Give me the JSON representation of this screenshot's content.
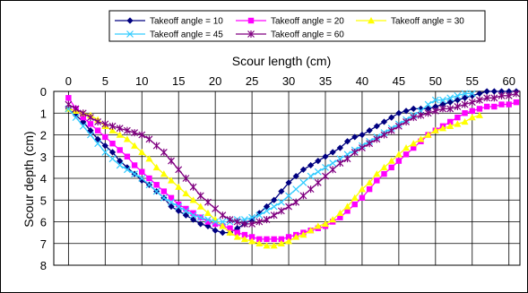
{
  "chart_data": {
    "type": "line",
    "xlabel": "Scour length (cm)",
    "ylabel": "Scour depth (cm)",
    "xlim": [
      -2,
      61.5
    ],
    "ylim": [
      0,
      8
    ],
    "xticks": [
      "0",
      "5",
      "10",
      "15",
      "20",
      "25",
      "30",
      "35",
      "40",
      "45",
      "50",
      "55",
      "60"
    ],
    "yticks": [
      "0",
      "1",
      "2",
      "3",
      "4",
      "5",
      "6",
      "7",
      "8"
    ],
    "x_axis_position": "top",
    "y_axis_inverted": true,
    "grid": true,
    "legend_placement": "top",
    "series": [
      {
        "name": "Takeoff angle = 10",
        "color": "#000080",
        "marker": "diamond",
        "points": [
          [
            0,
            0.8
          ],
          [
            1,
            1.1
          ],
          [
            2,
            1.4
          ],
          [
            3,
            1.8
          ],
          [
            4,
            2.2
          ],
          [
            5,
            2.5
          ],
          [
            6,
            2.8
          ],
          [
            7,
            3.2
          ],
          [
            8,
            3.5
          ],
          [
            9,
            3.8
          ],
          [
            10,
            4.1
          ],
          [
            11,
            4.3
          ],
          [
            12,
            4.6
          ],
          [
            13,
            4.9
          ],
          [
            14,
            5.3
          ],
          [
            15,
            5.5
          ],
          [
            16,
            5.7
          ],
          [
            17,
            5.9
          ],
          [
            18,
            6.1
          ],
          [
            19,
            6.2
          ],
          [
            20,
            6.4
          ],
          [
            21,
            6.5
          ],
          [
            22,
            6.5
          ],
          [
            23,
            6.3
          ],
          [
            24,
            6.1
          ],
          [
            25,
            5.9
          ],
          [
            26,
            5.6
          ],
          [
            27,
            5.3
          ],
          [
            28,
            5.0
          ],
          [
            29,
            4.6
          ],
          [
            30,
            4.2
          ],
          [
            31,
            3.9
          ],
          [
            32,
            3.6
          ],
          [
            33,
            3.4
          ],
          [
            34,
            3.2
          ],
          [
            35,
            3.0
          ],
          [
            36,
            2.8
          ],
          [
            37,
            2.6
          ],
          [
            38,
            2.3
          ],
          [
            39,
            2.1
          ],
          [
            40,
            2.0
          ],
          [
            41,
            1.8
          ],
          [
            42,
            1.6
          ],
          [
            43,
            1.4
          ],
          [
            44,
            1.2
          ],
          [
            45,
            1.0
          ],
          [
            46,
            0.9
          ],
          [
            47,
            0.8
          ],
          [
            48,
            0.8
          ],
          [
            49,
            0.8
          ],
          [
            50,
            0.7
          ],
          [
            51,
            0.6
          ],
          [
            52,
            0.5
          ],
          [
            53,
            0.4
          ],
          [
            54,
            0.3
          ],
          [
            55,
            0.2
          ],
          [
            56,
            0.1
          ],
          [
            57,
            0.0
          ],
          [
            58,
            0.0
          ],
          [
            59,
            0.0
          ],
          [
            60,
            0.0
          ],
          [
            61,
            0.0
          ]
        ]
      },
      {
        "name": "Takeoff angle = 20",
        "color": "#ff00ff",
        "marker": "square",
        "points": [
          [
            0,
            0.3
          ],
          [
            1,
            0.8
          ],
          [
            2,
            1.2
          ],
          [
            3,
            1.5
          ],
          [
            4,
            1.8
          ],
          [
            5,
            2.1
          ],
          [
            6,
            2.4
          ],
          [
            7,
            2.7
          ],
          [
            8,
            3.0
          ],
          [
            9,
            3.4
          ],
          [
            10,
            3.7
          ],
          [
            11,
            4.0
          ],
          [
            12,
            4.3
          ],
          [
            13,
            4.6
          ],
          [
            14,
            4.9
          ],
          [
            15,
            5.2
          ],
          [
            16,
            5.4
          ],
          [
            17,
            5.6
          ],
          [
            18,
            5.8
          ],
          [
            19,
            6.0
          ],
          [
            20,
            6.1
          ],
          [
            21,
            6.2
          ],
          [
            22,
            6.3
          ],
          [
            23,
            6.5
          ],
          [
            24,
            6.6
          ],
          [
            25,
            6.7
          ],
          [
            26,
            6.8
          ],
          [
            27,
            6.8
          ],
          [
            28,
            6.8
          ],
          [
            29,
            6.8
          ],
          [
            30,
            6.7
          ],
          [
            31,
            6.6
          ],
          [
            32,
            6.5
          ],
          [
            33,
            6.4
          ],
          [
            34,
            6.3
          ],
          [
            35,
            6.2
          ],
          [
            36,
            6.0
          ],
          [
            37,
            5.8
          ],
          [
            38,
            5.5
          ],
          [
            39,
            5.2
          ],
          [
            40,
            4.9
          ],
          [
            41,
            4.5
          ],
          [
            42,
            4.1
          ],
          [
            43,
            3.8
          ],
          [
            44,
            3.5
          ],
          [
            45,
            3.2
          ],
          [
            46,
            2.9
          ],
          [
            47,
            2.6
          ],
          [
            48,
            2.3
          ],
          [
            49,
            2.0
          ],
          [
            50,
            1.8
          ],
          [
            51,
            1.6
          ],
          [
            52,
            1.4
          ],
          [
            53,
            1.2
          ],
          [
            54,
            1.0
          ],
          [
            55,
            0.9
          ],
          [
            56,
            0.8
          ],
          [
            57,
            0.7
          ],
          [
            58,
            0.7
          ],
          [
            59,
            0.6
          ],
          [
            60,
            0.6
          ],
          [
            61,
            0.5
          ]
        ]
      },
      {
        "name": "Takeoff angle = 30",
        "color": "#ffff00",
        "marker": "triangle",
        "points": [
          [
            0,
            0.8
          ],
          [
            1,
            0.9
          ],
          [
            2,
            1.0
          ],
          [
            3,
            1.1
          ],
          [
            4,
            1.3
          ],
          [
            5,
            1.6
          ],
          [
            6,
            1.8
          ],
          [
            7,
            2.0
          ],
          [
            8,
            2.2
          ],
          [
            9,
            2.5
          ],
          [
            10,
            2.8
          ],
          [
            11,
            3.1
          ],
          [
            12,
            3.5
          ],
          [
            13,
            3.8
          ],
          [
            14,
            4.1
          ],
          [
            15,
            4.4
          ],
          [
            16,
            4.7
          ],
          [
            17,
            5.0
          ],
          [
            18,
            5.3
          ],
          [
            19,
            5.6
          ],
          [
            20,
            5.9
          ],
          [
            21,
            6.2
          ],
          [
            22,
            6.5
          ],
          [
            23,
            6.7
          ],
          [
            24,
            6.8
          ],
          [
            25,
            6.9
          ],
          [
            26,
            7.0
          ],
          [
            27,
            7.1
          ],
          [
            28,
            7.1
          ],
          [
            29,
            7.0
          ],
          [
            30,
            6.9
          ],
          [
            31,
            6.7
          ],
          [
            32,
            6.6
          ],
          [
            33,
            6.4
          ],
          [
            34,
            6.2
          ],
          [
            35,
            6.1
          ],
          [
            36,
            5.9
          ],
          [
            37,
            5.6
          ],
          [
            38,
            5.3
          ],
          [
            39,
            4.9
          ],
          [
            40,
            4.5
          ],
          [
            41,
            4.2
          ],
          [
            42,
            3.8
          ],
          [
            43,
            3.5
          ],
          [
            44,
            3.2
          ],
          [
            45,
            2.9
          ],
          [
            46,
            2.6
          ],
          [
            47,
            2.4
          ],
          [
            48,
            2.2
          ],
          [
            49,
            2.0
          ],
          [
            50,
            1.8
          ],
          [
            51,
            1.7
          ],
          [
            52,
            1.6
          ],
          [
            53,
            1.5
          ],
          [
            54,
            1.4
          ],
          [
            55,
            1.2
          ],
          [
            56,
            1.1
          ]
        ]
      },
      {
        "name": "Takeoff angle = 45",
        "color": "#33ccff",
        "marker": "x",
        "points": [
          [
            0,
            0.8
          ],
          [
            1,
            1.2
          ],
          [
            2,
            1.6
          ],
          [
            3,
            2.0
          ],
          [
            4,
            2.4
          ],
          [
            5,
            2.8
          ],
          [
            6,
            3.1
          ],
          [
            7,
            3.4
          ],
          [
            8,
            3.6
          ],
          [
            9,
            3.8
          ],
          [
            10,
            4.0
          ],
          [
            11,
            4.3
          ],
          [
            12,
            4.6
          ],
          [
            13,
            4.9
          ],
          [
            14,
            5.1
          ],
          [
            15,
            5.3
          ],
          [
            16,
            5.5
          ],
          [
            17,
            5.7
          ],
          [
            18,
            5.8
          ],
          [
            19,
            5.9
          ],
          [
            20,
            6.0
          ],
          [
            21,
            6.0
          ],
          [
            22,
            6.0
          ],
          [
            23,
            5.9
          ],
          [
            24,
            5.9
          ],
          [
            25,
            5.8
          ],
          [
            26,
            5.7
          ],
          [
            27,
            5.5
          ],
          [
            28,
            5.3
          ],
          [
            29,
            5.1
          ],
          [
            30,
            4.8
          ],
          [
            31,
            4.5
          ],
          [
            32,
            4.2
          ],
          [
            33,
            3.9
          ],
          [
            34,
            3.7
          ],
          [
            35,
            3.5
          ],
          [
            36,
            3.3
          ],
          [
            37,
            3.1
          ],
          [
            38,
            2.9
          ],
          [
            39,
            2.7
          ],
          [
            40,
            2.5
          ],
          [
            41,
            2.3
          ],
          [
            42,
            2.1
          ],
          [
            43,
            1.9
          ],
          [
            44,
            1.7
          ],
          [
            45,
            1.5
          ],
          [
            46,
            1.3
          ],
          [
            47,
            1.1
          ],
          [
            48,
            0.9
          ],
          [
            49,
            0.6
          ],
          [
            50,
            0.4
          ],
          [
            51,
            0.4
          ],
          [
            52,
            0.3
          ],
          [
            53,
            0.2
          ],
          [
            54,
            0.1
          ],
          [
            55,
            0.1
          ]
        ]
      },
      {
        "name": "Takeoff angle = 60",
        "color": "#800080",
        "marker": "asterisk",
        "points": [
          [
            0,
            0.6
          ],
          [
            1,
            0.8
          ],
          [
            2,
            1.0
          ],
          [
            3,
            1.2
          ],
          [
            4,
            1.4
          ],
          [
            5,
            1.5
          ],
          [
            6,
            1.6
          ],
          [
            7,
            1.7
          ],
          [
            8,
            1.8
          ],
          [
            9,
            1.9
          ],
          [
            10,
            2.0
          ],
          [
            11,
            2.2
          ],
          [
            12,
            2.5
          ],
          [
            13,
            2.8
          ],
          [
            14,
            3.2
          ],
          [
            15,
            3.6
          ],
          [
            16,
            4.0
          ],
          [
            17,
            4.4
          ],
          [
            18,
            4.8
          ],
          [
            19,
            5.1
          ],
          [
            20,
            5.4
          ],
          [
            21,
            5.7
          ],
          [
            22,
            5.9
          ],
          [
            23,
            6.0
          ],
          [
            24,
            6.1
          ],
          [
            25,
            6.1
          ],
          [
            26,
            6.0
          ],
          [
            27,
            5.9
          ],
          [
            28,
            5.7
          ],
          [
            29,
            5.5
          ],
          [
            30,
            5.3
          ],
          [
            31,
            5.1
          ],
          [
            32,
            4.8
          ],
          [
            33,
            4.5
          ],
          [
            34,
            4.2
          ],
          [
            35,
            3.9
          ],
          [
            36,
            3.6
          ],
          [
            37,
            3.3
          ],
          [
            38,
            3.1
          ],
          [
            39,
            2.8
          ],
          [
            40,
            2.6
          ],
          [
            41,
            2.4
          ],
          [
            42,
            2.2
          ],
          [
            43,
            2.0
          ],
          [
            44,
            1.8
          ],
          [
            45,
            1.6
          ],
          [
            46,
            1.4
          ],
          [
            47,
            1.2
          ],
          [
            48,
            1.1
          ],
          [
            49,
            1.0
          ],
          [
            50,
            0.9
          ],
          [
            51,
            0.8
          ],
          [
            52,
            0.8
          ],
          [
            53,
            0.7
          ],
          [
            54,
            0.6
          ],
          [
            55,
            0.5
          ],
          [
            56,
            0.4
          ],
          [
            57,
            0.3
          ],
          [
            58,
            0.3
          ],
          [
            59,
            0.2
          ],
          [
            60,
            0.2
          ],
          [
            61,
            0.1
          ]
        ]
      }
    ]
  }
}
